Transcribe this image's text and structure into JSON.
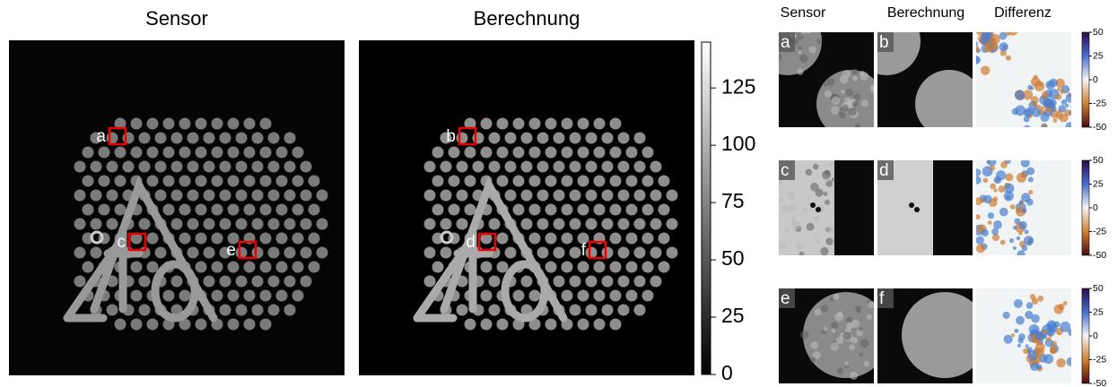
{
  "main": {
    "panels": [
      {
        "title": "Sensor",
        "labels": [
          "a",
          "c",
          "e"
        ]
      },
      {
        "title": "Berechnung",
        "labels": [
          "b",
          "d",
          "f"
        ]
      }
    ],
    "colorbar": {
      "lim": [
        0,
        145
      ],
      "ticks": [
        0,
        25,
        50,
        75,
        100,
        125
      ]
    }
  },
  "zoom": {
    "columns": [
      "Sensor",
      "Berechnung",
      "Differenz"
    ],
    "labels": [
      [
        "a",
        "b"
      ],
      [
        "c",
        "d"
      ],
      [
        "e",
        "f"
      ]
    ],
    "colorbar": {
      "lim": [
        -50,
        50
      ],
      "ticks": [
        50,
        25,
        0,
        -25,
        -50
      ]
    }
  }
}
